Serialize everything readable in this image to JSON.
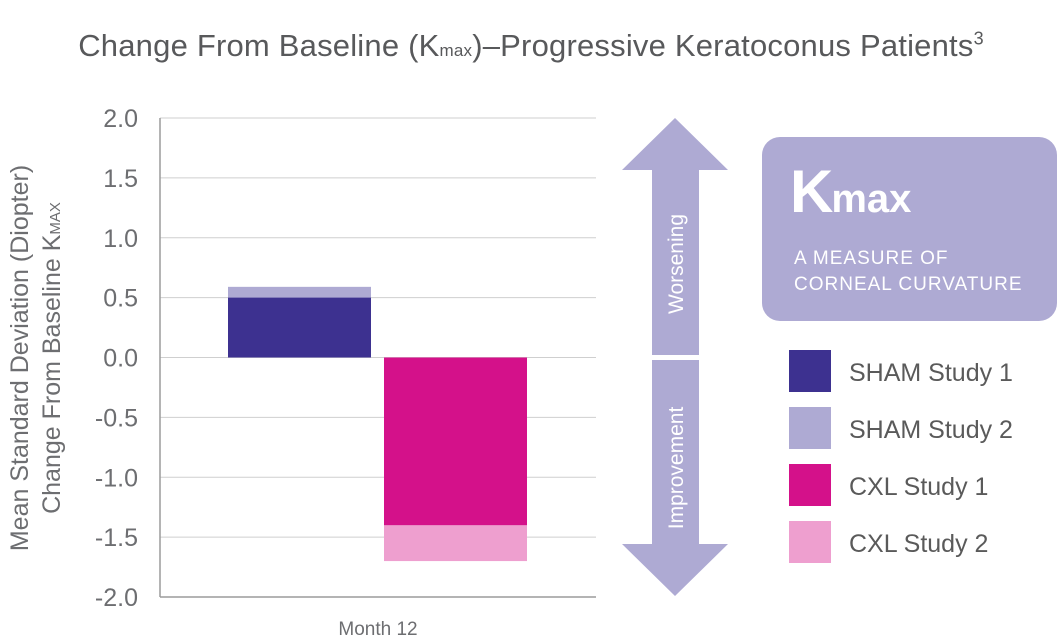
{
  "title": {
    "main": "Change From Baseline (K",
    "subscript": "max",
    "rest": ")–Progressive Keratoconus Patients",
    "superscript": "3"
  },
  "chart_data": {
    "type": "bar",
    "ylabel_line1": "Mean Standard Deviation (Diopter)",
    "ylabel_line2": "Change From Baseline K",
    "ylabel_subscript": "MAX",
    "ylim": [
      -2.0,
      2.0
    ],
    "yticks": [
      2.0,
      1.5,
      1.0,
      0.5,
      0.0,
      -0.5,
      -1.0,
      -1.5,
      -2.0
    ],
    "ytick_labels": [
      "2.0",
      "1.5",
      "1.0",
      "0.5",
      "0.0",
      "-0.5",
      "-1.0",
      "-1.5",
      "-2.0"
    ],
    "categories": [
      "Month 12"
    ],
    "grid": "horizontal",
    "series": [
      {
        "name": "SHAM Study 1",
        "color": "#3d3190",
        "values": [
          0.5
        ]
      },
      {
        "name": "SHAM Study 2",
        "color": "#aeaad3",
        "values": [
          0.59
        ]
      },
      {
        "name": "CXL Study 1",
        "color": "#d4118a",
        "values": [
          -1.4
        ]
      },
      {
        "name": "CXL Study 2",
        "color": "#ee9fcf",
        "values": [
          -1.7
        ]
      }
    ]
  },
  "arrow": {
    "up_label": "Worsening",
    "down_label": "Improvement",
    "color": "#aeaad3"
  },
  "kbox": {
    "big": "K",
    "big_sub": "max",
    "line1": "A MEASURE OF",
    "line2": "CORNEAL CURVATURE",
    "color": "#aeaad3"
  },
  "legend": [
    {
      "label": "SHAM Study 1",
      "color": "#3d3190"
    },
    {
      "label": "SHAM Study 2",
      "color": "#aeaad3"
    },
    {
      "label": "CXL Study 1",
      "color": "#d4118a"
    },
    {
      "label": "CXL Study 2",
      "color": "#ee9fcf"
    }
  ]
}
